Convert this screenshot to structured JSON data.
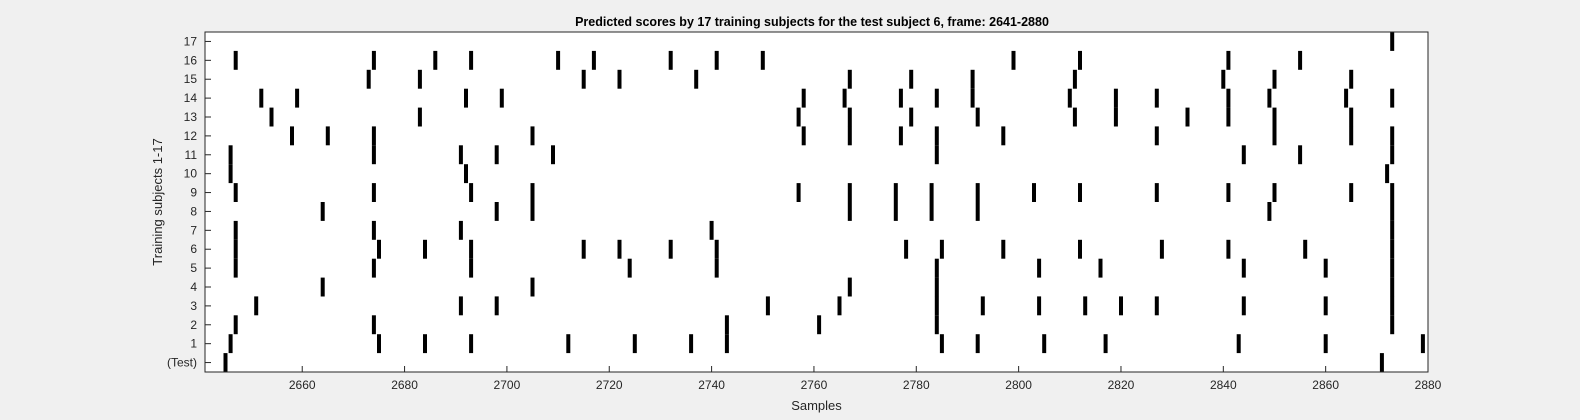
{
  "chart_data": {
    "type": "event-raster",
    "title": "Predicted scores by 17 training subjects for the test subject 6, frame: 2641-2880",
    "xlabel": "Samples",
    "ylabel": "Training subjects 1-17",
    "xlim": [
      2641,
      2880
    ],
    "x_ticks": [
      2660,
      2680,
      2700,
      2720,
      2740,
      2760,
      2780,
      2800,
      2820,
      2840,
      2860,
      2880
    ],
    "y_tick_labels": [
      "(Test)",
      "1",
      "2",
      "3",
      "4",
      "5",
      "6",
      "7",
      "8",
      "9",
      "10",
      "11",
      "12",
      "13",
      "14",
      "15",
      "16",
      "17"
    ],
    "grid": false,
    "mark_color": "#000000",
    "rows": [
      {
        "label": "(Test)",
        "x": [
          2645,
          2871
        ]
      },
      {
        "label": "1",
        "x": [
          2646,
          2675,
          2684,
          2693,
          2712,
          2725,
          2736,
          2743,
          2785,
          2792,
          2805,
          2817,
          2843,
          2860,
          2879
        ]
      },
      {
        "label": "2",
        "x": [
          2647,
          2674,
          2743,
          2761,
          2784,
          2873
        ]
      },
      {
        "label": "3",
        "x": [
          2651,
          2691,
          2698,
          2751,
          2765,
          2784,
          2793,
          2804,
          2813,
          2820,
          2827,
          2844,
          2860,
          2873
        ]
      },
      {
        "label": "4",
        "x": [
          2664,
          2705,
          2767,
          2784,
          2873
        ]
      },
      {
        "label": "5",
        "x": [
          2647,
          2674,
          2693,
          2724,
          2741,
          2784,
          2804,
          2816,
          2844,
          2860,
          2873
        ]
      },
      {
        "label": "6",
        "x": [
          2647,
          2675,
          2684,
          2693,
          2715,
          2722,
          2732,
          2741,
          2778,
          2785,
          2797,
          2812,
          2828,
          2841,
          2856,
          2873
        ]
      },
      {
        "label": "7",
        "x": [
          2647,
          2674,
          2691,
          2740,
          2873
        ]
      },
      {
        "label": "8",
        "x": [
          2664,
          2698,
          2705,
          2767,
          2776,
          2783,
          2792,
          2849,
          2873
        ]
      },
      {
        "label": "9",
        "x": [
          2647,
          2674,
          2693,
          2705,
          2757,
          2767,
          2776,
          2783,
          2792,
          2803,
          2812,
          2827,
          2841,
          2850,
          2865,
          2873
        ]
      },
      {
        "label": "10",
        "x": [
          2646,
          2692,
          2872
        ]
      },
      {
        "label": "11",
        "x": [
          2646,
          2674,
          2691,
          2698,
          2709,
          2784,
          2844,
          2855,
          2873
        ]
      },
      {
        "label": "12",
        "x": [
          2658,
          2665,
          2674,
          2705,
          2758,
          2767,
          2777,
          2784,
          2797,
          2827,
          2850,
          2865,
          2873
        ]
      },
      {
        "label": "13",
        "x": [
          2654,
          2683,
          2757,
          2767,
          2779,
          2792,
          2811,
          2819,
          2833,
          2841,
          2850,
          2865
        ]
      },
      {
        "label": "14",
        "x": [
          2652,
          2659,
          2692,
          2699,
          2758,
          2766,
          2777,
          2784,
          2791,
          2810,
          2819,
          2827,
          2841,
          2849,
          2864,
          2873
        ]
      },
      {
        "label": "15",
        "x": [
          2673,
          2683,
          2715,
          2722,
          2737,
          2767,
          2779,
          2791,
          2811,
          2840,
          2850,
          2865
        ]
      },
      {
        "label": "16",
        "x": [
          2647,
          2674,
          2686,
          2693,
          2710,
          2717,
          2732,
          2741,
          2750,
          2799,
          2812,
          2841,
          2855
        ]
      },
      {
        "label": "17",
        "x": [
          2873
        ]
      }
    ]
  }
}
